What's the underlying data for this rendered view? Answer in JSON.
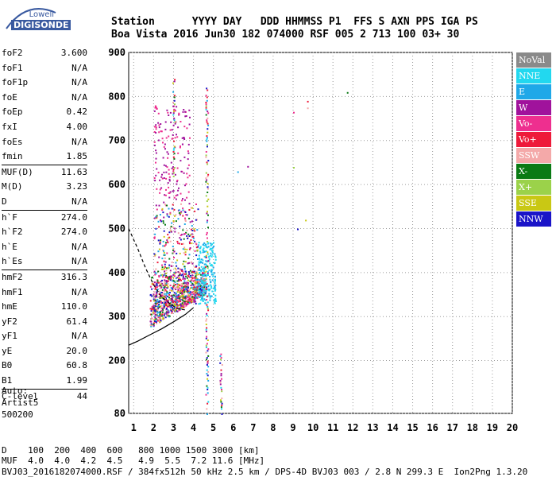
{
  "logo": {
    "top": "Lowell",
    "main": "DIGISONDE"
  },
  "header": {
    "line1": "Station      YYYY DAY   DDD HHMMSS P1  FFS S AXN PPS IGA PS",
    "line2": "Boa Vista 2016 Jun30 182 074000 RSF 005 2 713 100 03+ 30"
  },
  "params": [
    {
      "name": "foF2",
      "value": "3.600",
      "sep": false
    },
    {
      "name": "foF1",
      "value": "N/A",
      "sep": false
    },
    {
      "name": "foF1p",
      "value": "N/A",
      "sep": false
    },
    {
      "name": "foE",
      "value": "N/A",
      "sep": false
    },
    {
      "name": "foEp",
      "value": "0.42",
      "sep": false
    },
    {
      "name": "fxI",
      "value": "4.00",
      "sep": false
    },
    {
      "name": "foEs",
      "value": "N/A",
      "sep": false
    },
    {
      "name": "fmin",
      "value": "1.85",
      "sep": false
    },
    {
      "name": "MUF(D)",
      "value": "11.63",
      "sep": true
    },
    {
      "name": "M(D)",
      "value": "3.23",
      "sep": false
    },
    {
      "name": "D",
      "value": "N/A",
      "sep": false
    },
    {
      "name": "h`F",
      "value": "274.0",
      "sep": true
    },
    {
      "name": "h`F2",
      "value": "274.0",
      "sep": false
    },
    {
      "name": "h`E",
      "value": "N/A",
      "sep": false
    },
    {
      "name": "h`Es",
      "value": "N/A",
      "sep": false
    },
    {
      "name": "hmF2",
      "value": "316.3",
      "sep": true
    },
    {
      "name": "hmF1",
      "value": "N/A",
      "sep": false
    },
    {
      "name": "hmE",
      "value": "110.0",
      "sep": false
    },
    {
      "name": "yF2",
      "value": "61.4",
      "sep": false
    },
    {
      "name": "yF1",
      "value": "N/A",
      "sep": false
    },
    {
      "name": "yE",
      "value": "20.0",
      "sep": false
    },
    {
      "name": "B0",
      "value": "60.8",
      "sep": false
    },
    {
      "name": "B1",
      "value": "1.99",
      "sep": false
    },
    {
      "name": "C-level",
      "value": "44",
      "sep": true
    }
  ],
  "auto": {
    "line1": "Auto:",
    "line2": "Artist5",
    "line3": "500200"
  },
  "footer": {
    "line1": "D    100  200  400  600   800 1000 1500 3000 [km]",
    "line2": "MUF  4.0  4.0  4.2  4.5   4.9  5.5  7.2 11.6 [MHz]",
    "line3": "BVJ03_2016182074000.RSF / 384fx512h 50 kHz 2.5 km / DPS-4D BVJ03 003 / 2.8 N 299.3 E  Ion2Png 1.3.20"
  },
  "legend": [
    {
      "label": "NoVal",
      "color": "#8a8a8a"
    },
    {
      "label": "NNE",
      "color": "#22d8ef"
    },
    {
      "label": "E",
      "color": "#1fa8e8"
    },
    {
      "label": "W",
      "color": "#a0129c"
    },
    {
      "label": "Vo-",
      "color": "#ee2f8f"
    },
    {
      "label": "Vo+",
      "color": "#ee1a3a"
    },
    {
      "label": "SSW",
      "color": "#f4a9a9"
    },
    {
      "label": "X-",
      "color": "#0a7a14"
    },
    {
      "label": "X+",
      "color": "#9bd24a"
    },
    {
      "label": "SSE",
      "color": "#c9c814"
    },
    {
      "label": "NNW",
      "color": "#1a14c8"
    }
  ],
  "chart_data": {
    "type": "scatter",
    "title": "",
    "xlabel": "",
    "ylabel": "",
    "xlim": [
      0.75,
      20
    ],
    "ylim": [
      80,
      900
    ],
    "x_ticks": [
      1,
      2,
      3,
      4,
      5,
      6,
      7,
      8,
      9,
      10,
      11,
      12,
      13,
      14,
      15,
      16,
      17,
      18,
      19,
      20
    ],
    "y_ticks": [
      80,
      200,
      300,
      400,
      500,
      600,
      700,
      800,
      900
    ],
    "grid": "dotted",
    "legend_position": "right",
    "clusters": [
      {
        "name": "F-trace",
        "x_range": [
          1.8,
          4.6
        ],
        "h_range": [
          270,
          420
        ],
        "count": 900
      },
      {
        "name": "F-trace-upper",
        "x_range": [
          2.0,
          4.2
        ],
        "h_range": [
          330,
          560
        ],
        "count": 350
      },
      {
        "name": "second-hop",
        "x_range": [
          2.0,
          3.8
        ],
        "h_range": [
          560,
          780
        ],
        "count": 160
      },
      {
        "name": "cyan-fxI",
        "x_range": [
          4.2,
          5.1
        ],
        "h_range": [
          330,
          470
        ],
        "count": 220
      }
    ],
    "columns": [
      {
        "x": 4.65,
        "h_from": 80,
        "h_to": 830
      },
      {
        "x": 3.0,
        "h_from": 620,
        "h_to": 860
      },
      {
        "x": 5.35,
        "h_from": 80,
        "h_to": 220
      }
    ],
    "isolated_points": [
      {
        "x": 6.2,
        "h": 630
      },
      {
        "x": 6.7,
        "h": 642
      },
      {
        "x": 9.0,
        "h": 765
      },
      {
        "x": 9.7,
        "h": 790
      },
      {
        "x": 9.7,
        "h": 775
      },
      {
        "x": 11.7,
        "h": 810
      },
      {
        "x": 9.0,
        "h": 640
      },
      {
        "x": 9.6,
        "h": 520
      },
      {
        "x": 9.2,
        "h": 500
      }
    ],
    "profile_curves": [
      {
        "name": "upper-curve",
        "points": [
          [
            0.75,
            500
          ],
          [
            1.2,
            455
          ],
          [
            1.6,
            410
          ],
          [
            2.0,
            372
          ],
          [
            2.4,
            345
          ],
          [
            2.8,
            330
          ],
          [
            3.2,
            318
          ],
          [
            3.6,
            315
          ]
        ]
      },
      {
        "name": "lower-curve",
        "points": [
          [
            0.75,
            235
          ],
          [
            1.2,
            244
          ],
          [
            1.8,
            258
          ],
          [
            2.4,
            272
          ],
          [
            3.0,
            288
          ],
          [
            3.6,
            305
          ],
          [
            4.0,
            320
          ]
        ]
      }
    ]
  }
}
